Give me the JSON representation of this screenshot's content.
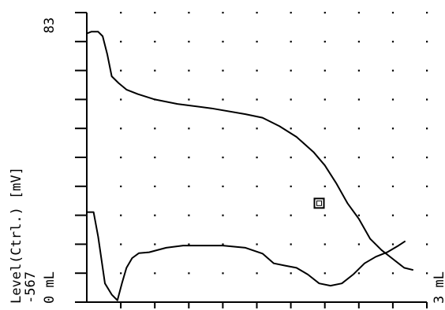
{
  "chart_data": {
    "type": "line",
    "ylabel": "Level(Ctrl.) [mV]",
    "y_top_label": "83",
    "y_bottom_label": "-567",
    "x_left_label": "0 mL",
    "x_right_label": "3 mL",
    "xlim": [
      0,
      3
    ],
    "ylim": [
      -567,
      83
    ],
    "grid": "dotted",
    "series": [
      {
        "values": [
          {
            "x": 0.0,
            "y": 36
          },
          {
            "x": 0.04,
            "y": 40
          },
          {
            "x": 0.1,
            "y": 40
          },
          {
            "x": 0.14,
            "y": 30
          },
          {
            "x": 0.18,
            "y": -10
          },
          {
            "x": 0.22,
            "y": -60
          },
          {
            "x": 0.28,
            "y": -75
          },
          {
            "x": 0.35,
            "y": -90
          },
          {
            "x": 0.45,
            "y": -100
          },
          {
            "x": 0.6,
            "y": -112
          },
          {
            "x": 0.8,
            "y": -122
          },
          {
            "x": 1.1,
            "y": -132
          },
          {
            "x": 1.4,
            "y": -145
          },
          {
            "x": 1.55,
            "y": -153
          },
          {
            "x": 1.7,
            "y": -172
          },
          {
            "x": 1.85,
            "y": -196
          },
          {
            "x": 2.0,
            "y": -230
          },
          {
            "x": 2.1,
            "y": -260
          },
          {
            "x": 2.2,
            "y": -300
          },
          {
            "x": 2.3,
            "y": -345
          },
          {
            "x": 2.4,
            "y": -380
          },
          {
            "x": 2.5,
            "y": -425
          },
          {
            "x": 2.6,
            "y": -450
          },
          {
            "x": 2.7,
            "y": -470
          },
          {
            "x": 2.8,
            "y": -490
          },
          {
            "x": 2.88,
            "y": -495
          }
        ]
      },
      {
        "values": [
          {
            "x": 0.0,
            "y": -365
          },
          {
            "x": 0.06,
            "y": -365
          },
          {
            "x": 0.1,
            "y": -420
          },
          {
            "x": 0.16,
            "y": -525
          },
          {
            "x": 0.22,
            "y": -550
          },
          {
            "x": 0.27,
            "y": -563
          },
          {
            "x": 0.31,
            "y": -525
          },
          {
            "x": 0.35,
            "y": -490
          },
          {
            "x": 0.4,
            "y": -468
          },
          {
            "x": 0.46,
            "y": -457
          },
          {
            "x": 0.55,
            "y": -455
          },
          {
            "x": 0.7,
            "y": -445
          },
          {
            "x": 0.85,
            "y": -440
          },
          {
            "x": 1.0,
            "y": -440
          },
          {
            "x": 1.2,
            "y": -440
          },
          {
            "x": 1.4,
            "y": -445
          },
          {
            "x": 1.55,
            "y": -458
          },
          {
            "x": 1.65,
            "y": -480
          },
          {
            "x": 1.75,
            "y": -485
          },
          {
            "x": 1.85,
            "y": -490
          },
          {
            "x": 1.95,
            "y": -505
          },
          {
            "x": 2.05,
            "y": -525
          },
          {
            "x": 2.15,
            "y": -530
          },
          {
            "x": 2.25,
            "y": -525
          },
          {
            "x": 2.35,
            "y": -505
          },
          {
            "x": 2.45,
            "y": -480
          },
          {
            "x": 2.55,
            "y": -465
          },
          {
            "x": 2.65,
            "y": -455
          },
          {
            "x": 2.75,
            "y": -440
          },
          {
            "x": 2.81,
            "y": -430
          }
        ]
      }
    ],
    "marker": {
      "x": 2.05,
      "y": -345,
      "shape": "square"
    }
  },
  "colors": {
    "line": "#000000",
    "background": "#ffffff"
  }
}
